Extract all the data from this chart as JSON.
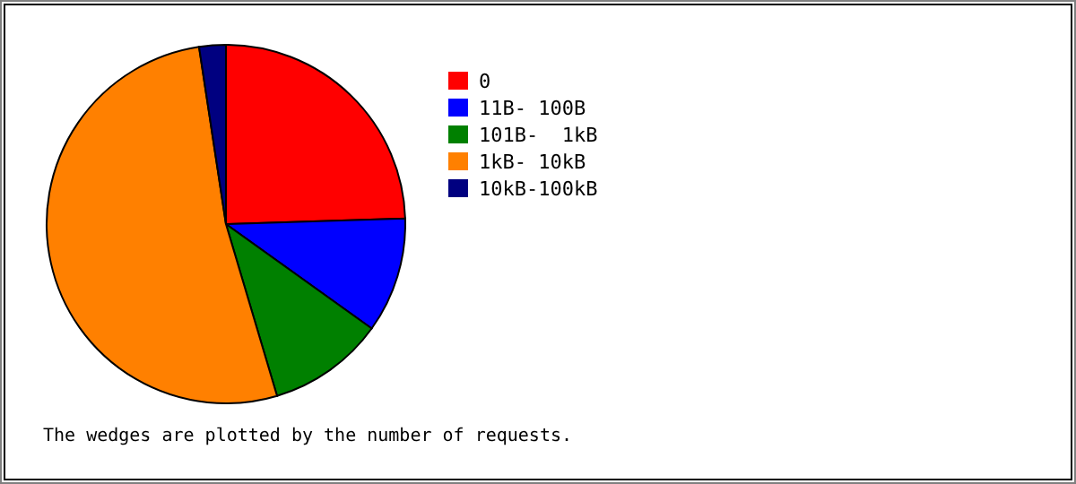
{
  "chart_data": {
    "type": "pie",
    "categories": [
      "0",
      "11B- 100B",
      "101B-  1kB",
      "1kB- 10kB",
      "10kB-100kB"
    ],
    "values": [
      24.5,
      10.4,
      10.5,
      52.2,
      2.4
    ],
    "colors": [
      "#ff0000",
      "#0000ff",
      "#008000",
      "#ff8000",
      "#000080"
    ],
    "legend": "right",
    "annotations": [
      "The wedges are plotted by the number of requests."
    ]
  }
}
